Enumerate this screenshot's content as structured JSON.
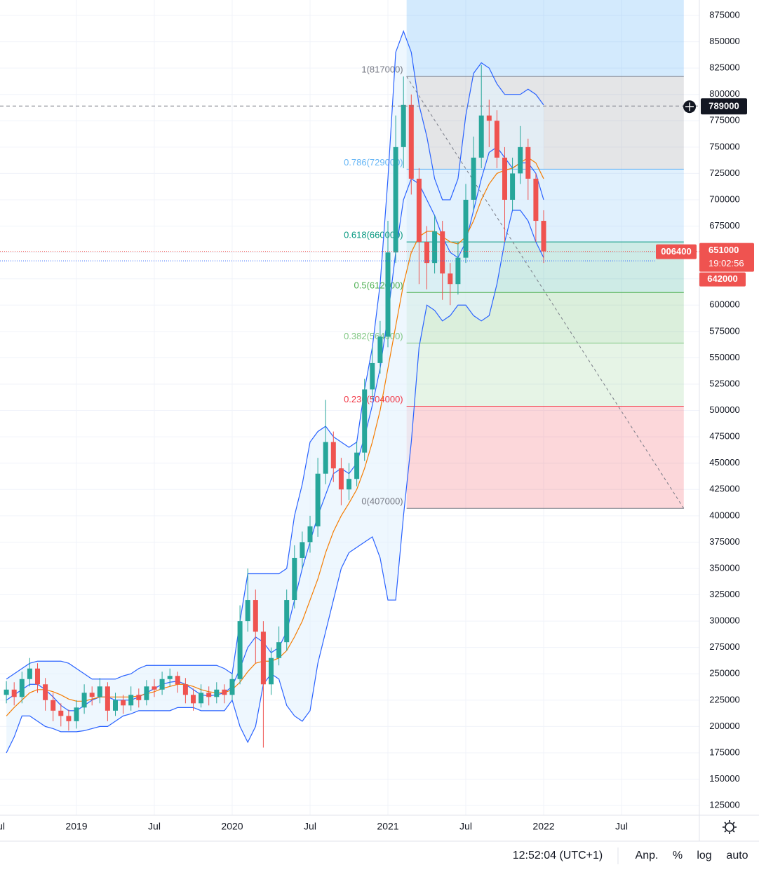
{
  "chart_data": {
    "type": "candlestick",
    "x": [
      2018.55,
      2018.6,
      2018.65,
      2018.7,
      2018.75,
      2018.8,
      2018.85,
      2018.9,
      2018.95,
      2019,
      2019.05,
      2019.1,
      2019.15,
      2019.2,
      2019.25,
      2019.3,
      2019.35,
      2019.4,
      2019.45,
      2019.5,
      2019.55,
      2019.6,
      2019.65,
      2019.7,
      2019.75,
      2019.8,
      2019.85,
      2019.9,
      2019.95,
      2020,
      2020.05,
      2020.1,
      2020.15,
      2020.2,
      2020.25,
      2020.3,
      2020.35,
      2020.4,
      2020.45,
      2020.5,
      2020.55,
      2020.6,
      2020.65,
      2020.7,
      2020.75,
      2020.8,
      2020.85,
      2020.9,
      2020.95,
      2021,
      2021.05,
      2021.1,
      2021.15,
      2021.2,
      2021.25,
      2021.3,
      2021.35,
      2021.4,
      2021.45,
      2021.5,
      2021.55,
      2021.6,
      2021.65,
      2021.7,
      2021.75,
      2021.8,
      2021.85,
      2021.9,
      2021.95,
      2022
    ],
    "open": [
      230000,
      235000,
      228000,
      245000,
      255000,
      240000,
      225000,
      215000,
      210000,
      205000,
      218000,
      232000,
      228000,
      238000,
      215000,
      225000,
      220000,
      230000,
      225000,
      238000,
      235000,
      245000,
      248000,
      240000,
      230000,
      222000,
      232000,
      228000,
      235000,
      230000,
      245000,
      300000,
      320000,
      290000,
      240000,
      265000,
      280000,
      320000,
      360000,
      375000,
      390000,
      440000,
      470000,
      445000,
      425000,
      435000,
      460000,
      520000,
      545000,
      570000,
      650000,
      750000,
      790000,
      720000,
      660000,
      640000,
      670000,
      630000,
      620000,
      645000,
      700000,
      740000,
      780000,
      775000,
      740000,
      700000,
      725000,
      750000,
      720000,
      680000
    ],
    "high": [
      243000,
      242000,
      252000,
      265000,
      260000,
      246000,
      232000,
      222000,
      216000,
      225000,
      240000,
      238000,
      246000,
      242000,
      232000,
      230000,
      238000,
      236000,
      244000,
      245000,
      252000,
      255000,
      252000,
      246000,
      236000,
      240000,
      238000,
      242000,
      240000,
      250000,
      315000,
      350000,
      330000,
      300000,
      275000,
      295000,
      330000,
      372000,
      385000,
      400000,
      455000,
      510000,
      480000,
      455000,
      450000,
      470000,
      530000,
      560000,
      585000,
      680000,
      780000,
      817000,
      800000,
      730000,
      675000,
      685000,
      680000,
      640000,
      660000,
      715000,
      760000,
      828000,
      795000,
      785000,
      750000,
      740000,
      770000,
      758000,
      725000,
      690000
    ],
    "low": [
      222000,
      220000,
      222000,
      238000,
      232000,
      215000,
      205000,
      200000,
      196000,
      198000,
      212000,
      220000,
      222000,
      205000,
      210000,
      212000,
      215000,
      218000,
      220000,
      228000,
      230000,
      238000,
      232000,
      222000,
      215000,
      218000,
      220000,
      222000,
      222000,
      225000,
      240000,
      290000,
      260000,
      180000,
      230000,
      258000,
      272000,
      312000,
      350000,
      365000,
      380000,
      430000,
      432000,
      410000,
      415000,
      428000,
      452000,
      510000,
      535000,
      560000,
      640000,
      730000,
      705000,
      620000,
      615000,
      630000,
      605000,
      600000,
      610000,
      640000,
      690000,
      730000,
      750000,
      730000,
      660000,
      690000,
      715000,
      700000,
      660000,
      640000
    ],
    "close": [
      235000,
      228000,
      245000,
      255000,
      240000,
      225000,
      215000,
      210000,
      205000,
      218000,
      232000,
      228000,
      238000,
      215000,
      225000,
      220000,
      230000,
      225000,
      238000,
      235000,
      245000,
      248000,
      240000,
      230000,
      222000,
      232000,
      228000,
      235000,
      230000,
      245000,
      300000,
      320000,
      290000,
      240000,
      265000,
      280000,
      320000,
      360000,
      375000,
      390000,
      440000,
      470000,
      445000,
      425000,
      435000,
      460000,
      520000,
      545000,
      570000,
      650000,
      750000,
      790000,
      720000,
      660000,
      640000,
      670000,
      630000,
      620000,
      645000,
      700000,
      740000,
      780000,
      775000,
      740000,
      700000,
      725000,
      750000,
      720000,
      680000,
      651000
    ],
    "up_color": "#26a69a",
    "down_color": "#ef5350",
    "band_fill": "#e3f2fd",
    "overlays": [
      {
        "color": "#2962ff",
        "values": [
          245000,
          250000,
          255000,
          260000,
          262000,
          262000,
          262000,
          262000,
          260000,
          255000,
          250000,
          245000,
          245000,
          245000,
          245000,
          248000,
          250000,
          255000,
          258000,
          258000,
          258000,
          258000,
          258000,
          258000,
          258000,
          258000,
          258000,
          258000,
          255000,
          250000,
          300000,
          345000,
          345000,
          345000,
          345000,
          345000,
          350000,
          400000,
          430000,
          470000,
          480000,
          485000,
          475000,
          470000,
          465000,
          470000,
          520000,
          560000,
          620000,
          720000,
          840000,
          860000,
          840000,
          790000,
          760000,
          720000,
          700000,
          700000,
          720000,
          780000,
          820000,
          830000,
          825000,
          810000,
          800000,
          800000,
          800000,
          805000,
          800000,
          790000
        ]
      },
      {
        "color": "#2962ff",
        "values": [
          175000,
          190000,
          210000,
          210000,
          205000,
          200000,
          198000,
          195000,
          195000,
          195000,
          196000,
          198000,
          200000,
          200000,
          205000,
          210000,
          212000,
          215000,
          215000,
          215000,
          215000,
          215000,
          218000,
          218000,
          218000,
          215000,
          215000,
          215000,
          215000,
          225000,
          200000,
          185000,
          200000,
          240000,
          250000,
          245000,
          220000,
          210000,
          205000,
          215000,
          260000,
          290000,
          320000,
          350000,
          365000,
          370000,
          375000,
          380000,
          360000,
          320000,
          320000,
          400000,
          470000,
          560000,
          600000,
          595000,
          585000,
          590000,
          600000,
          600000,
          590000,
          585000,
          590000,
          620000,
          660000,
          690000,
          690000,
          680000,
          660000,
          645000
        ]
      },
      {
        "color": "#2962ff",
        "values": [
          225000,
          230000,
          235000,
          240000,
          240000,
          235000,
          228000,
          220000,
          215000,
          215000,
          220000,
          225000,
          228000,
          228000,
          225000,
          225000,
          225000,
          228000,
          232000,
          236000,
          240000,
          242000,
          243000,
          240000,
          235000,
          230000,
          229000,
          230000,
          232000,
          238000,
          255000,
          275000,
          285000,
          280000,
          270000,
          275000,
          290000,
          320000,
          350000,
          375000,
          400000,
          420000,
          440000,
          445000,
          440000,
          450000,
          475000,
          505000,
          540000,
          590000,
          650000,
          700000,
          720000,
          715000,
          700000,
          685000,
          665000,
          650000,
          645000,
          660000,
          690000,
          720000,
          745000,
          750000,
          740000,
          730000,
          735000,
          735000,
          725000,
          700000
        ]
      },
      {
        "color": "#f57c00",
        "values": [
          210000,
          218000,
          225000,
          232000,
          235000,
          235000,
          233000,
          230000,
          226000,
          224000,
          224000,
          226000,
          228000,
          228000,
          228000,
          228000,
          228000,
          229000,
          231000,
          233000,
          236000,
          238000,
          240000,
          240000,
          238000,
          235000,
          233000,
          232000,
          232000,
          235000,
          242000,
          252000,
          260000,
          262000,
          262000,
          265000,
          272000,
          285000,
          300000,
          320000,
          340000,
          365000,
          385000,
          400000,
          412000,
          425000,
          445000,
          470000,
          500000,
          540000,
          580000,
          620000,
          650000,
          665000,
          670000,
          670000,
          665000,
          660000,
          658000,
          665000,
          680000,
          700000,
          715000,
          725000,
          728000,
          730000,
          735000,
          740000,
          735000,
          720000
        ]
      }
    ],
    "xlim": [
      2018.509,
      2023.0
    ],
    "ylim": [
      115750,
      889640
    ],
    "xticks": [
      {
        "value": 2018.5,
        "label": "Jul"
      },
      2019,
      {
        "value": 2019.5,
        "label": "Jul"
      },
      2020,
      {
        "value": 2020.5,
        "label": "Jul"
      },
      2021,
      {
        "value": 2021.5,
        "label": "Jul"
      },
      2022,
      {
        "value": 2022.5,
        "label": "Jul"
      }
    ],
    "yticks": [
      125000,
      150000,
      175000,
      200000,
      225000,
      250000,
      275000,
      300000,
      325000,
      350000,
      375000,
      400000,
      425000,
      450000,
      475000,
      500000,
      525000,
      550000,
      575000,
      600000,
      625000,
      650000,
      675000,
      700000,
      725000,
      750000,
      775000,
      800000,
      825000,
      850000,
      875000
    ],
    "grid": true,
    "fib": {
      "x": [
        2021.12,
        2022.9
      ],
      "extension_color": "#2196f3",
      "levels": [
        {
          "value": 817000,
          "label": "1(817000)",
          "color": "#787b86"
        },
        {
          "value": 729000,
          "label": "0.786(729000)",
          "color": "#64b5f6"
        },
        {
          "value": 660000,
          "label": "0.618(660000)",
          "color": "#089981"
        },
        {
          "value": 612000,
          "label": "0.5(612000)",
          "color": "#4caf50"
        },
        {
          "value": 564000,
          "label": "0.382(564000)",
          "color": "#81c784"
        },
        {
          "value": 504000,
          "label": "0.236(504000)",
          "color": "#f23645"
        },
        {
          "value": 407000,
          "label": "0(407000)",
          "color": "#787b86"
        }
      ]
    },
    "crosshair_price": 789000,
    "last_price": 651000,
    "countdown": "19:02:56",
    "change_label": "006400",
    "last_price_low": 642000
  },
  "status_bar": {
    "time": "12:52:04 (UTC+1)",
    "buttons": [
      "Anp.",
      "%",
      "log",
      "auto"
    ]
  }
}
